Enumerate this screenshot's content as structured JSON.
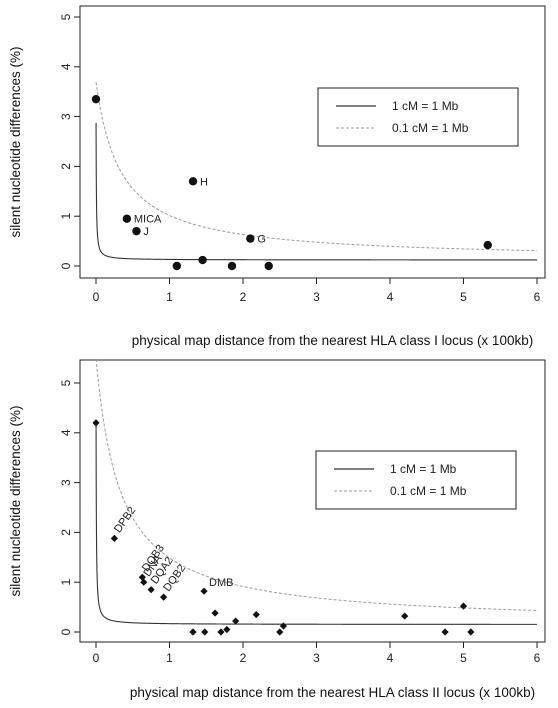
{
  "chart_data": [
    {
      "type": "scatter",
      "title": "",
      "xlabel": "physical map distance from the nearest HLA class I locus (x 100kb)",
      "ylabel": "silent nucleotide differences (%)",
      "xlim": [
        0,
        6
      ],
      "ylim": [
        0,
        5
      ],
      "xticks": [
        "0",
        "1",
        "2",
        "3",
        "4",
        "5",
        "6"
      ],
      "yticks": [
        "0",
        "1",
        "2",
        "3",
        "4",
        "5"
      ],
      "grid": false,
      "legend_position": "top-right",
      "marker": "circle",
      "legend": [
        {
          "label": "1 cM = 1 Mb",
          "style": "solid",
          "color": "#333333"
        },
        {
          "label": "0.1 cM = 1 Mb",
          "style": "dashed",
          "color": "#9a9a9a"
        }
      ],
      "curves": [
        {
          "name": "1 cM = 1 Mb",
          "x0": 0.004,
          "y0": 3.7,
          "c": 0.04,
          "yfloor": 0.12
        },
        {
          "name": "0.1 cM = 1 Mb",
          "x0": 0.004,
          "y0": 3.7,
          "c": 0.4,
          "yfloor": 0.12
        }
      ],
      "points": [
        {
          "x": 0.0,
          "y": 3.35,
          "label": ""
        },
        {
          "x": 0.42,
          "y": 0.95,
          "label": "MICA"
        },
        {
          "x": 0.55,
          "y": 0.7,
          "label": "J"
        },
        {
          "x": 1.1,
          "y": 0.0,
          "label": ""
        },
        {
          "x": 1.32,
          "y": 1.7,
          "label": "H"
        },
        {
          "x": 1.45,
          "y": 0.12,
          "label": ""
        },
        {
          "x": 1.85,
          "y": 0.0,
          "label": ""
        },
        {
          "x": 2.1,
          "y": 0.55,
          "label": "G"
        },
        {
          "x": 2.35,
          "y": 0.0,
          "label": ""
        },
        {
          "x": 5.33,
          "y": 0.42,
          "label": ""
        }
      ]
    },
    {
      "type": "scatter",
      "title": "",
      "xlabel": "physical map distance from the nearest HLA class II locus (x 100kb)",
      "ylabel": "silent nucleotide differences (%)",
      "xlim": [
        0,
        6
      ],
      "ylim": [
        0,
        5
      ],
      "xticks": [
        "0",
        "1",
        "2",
        "3",
        "4",
        "5",
        "6"
      ],
      "yticks": [
        "0",
        "1",
        "2",
        "3",
        "4",
        "5"
      ],
      "grid": false,
      "legend_position": "right",
      "marker": "diamond",
      "legend": [
        {
          "label": "1 cM = 1 Mb",
          "style": "solid",
          "color": "#333333"
        },
        {
          "label": "0.1 cM = 1 Mb",
          "style": "dashed",
          "color": "#9a9a9a"
        }
      ],
      "curves": [
        {
          "name": "1 cM = 1 Mb",
          "x0": 0.004,
          "y0": 5.5,
          "c": 0.04,
          "yfloor": 0.15
        },
        {
          "name": "0.1 cM = 1 Mb",
          "x0": 0.004,
          "y0": 5.5,
          "c": 0.4,
          "yfloor": 0.15
        }
      ],
      "points": [
        {
          "x": 0.0,
          "y": 4.2,
          "label": ""
        },
        {
          "x": 0.25,
          "y": 1.88,
          "label": "DPB2"
        },
        {
          "x": 0.63,
          "y": 1.1,
          "label": "DQB3"
        },
        {
          "x": 0.65,
          "y": 1.0,
          "label": "DNA"
        },
        {
          "x": 0.75,
          "y": 0.85,
          "label": "DQA2"
        },
        {
          "x": 0.92,
          "y": 0.7,
          "label": "DQB2"
        },
        {
          "x": 1.32,
          "y": 0.0,
          "label": ""
        },
        {
          "x": 1.47,
          "y": 0.82,
          "label": "DMB"
        },
        {
          "x": 1.48,
          "y": 0.0,
          "label": ""
        },
        {
          "x": 1.62,
          "y": 0.38,
          "label": ""
        },
        {
          "x": 1.7,
          "y": 0.0,
          "label": ""
        },
        {
          "x": 1.78,
          "y": 0.05,
          "label": ""
        },
        {
          "x": 1.9,
          "y": 0.22,
          "label": ""
        },
        {
          "x": 2.18,
          "y": 0.35,
          "label": ""
        },
        {
          "x": 2.5,
          "y": 0.0,
          "label": ""
        },
        {
          "x": 2.55,
          "y": 0.12,
          "label": ""
        },
        {
          "x": 4.2,
          "y": 0.32,
          "label": ""
        },
        {
          "x": 4.75,
          "y": 0.0,
          "label": ""
        },
        {
          "x": 5.0,
          "y": 0.52,
          "label": ""
        },
        {
          "x": 5.1,
          "y": 0.0,
          "label": ""
        }
      ]
    }
  ]
}
